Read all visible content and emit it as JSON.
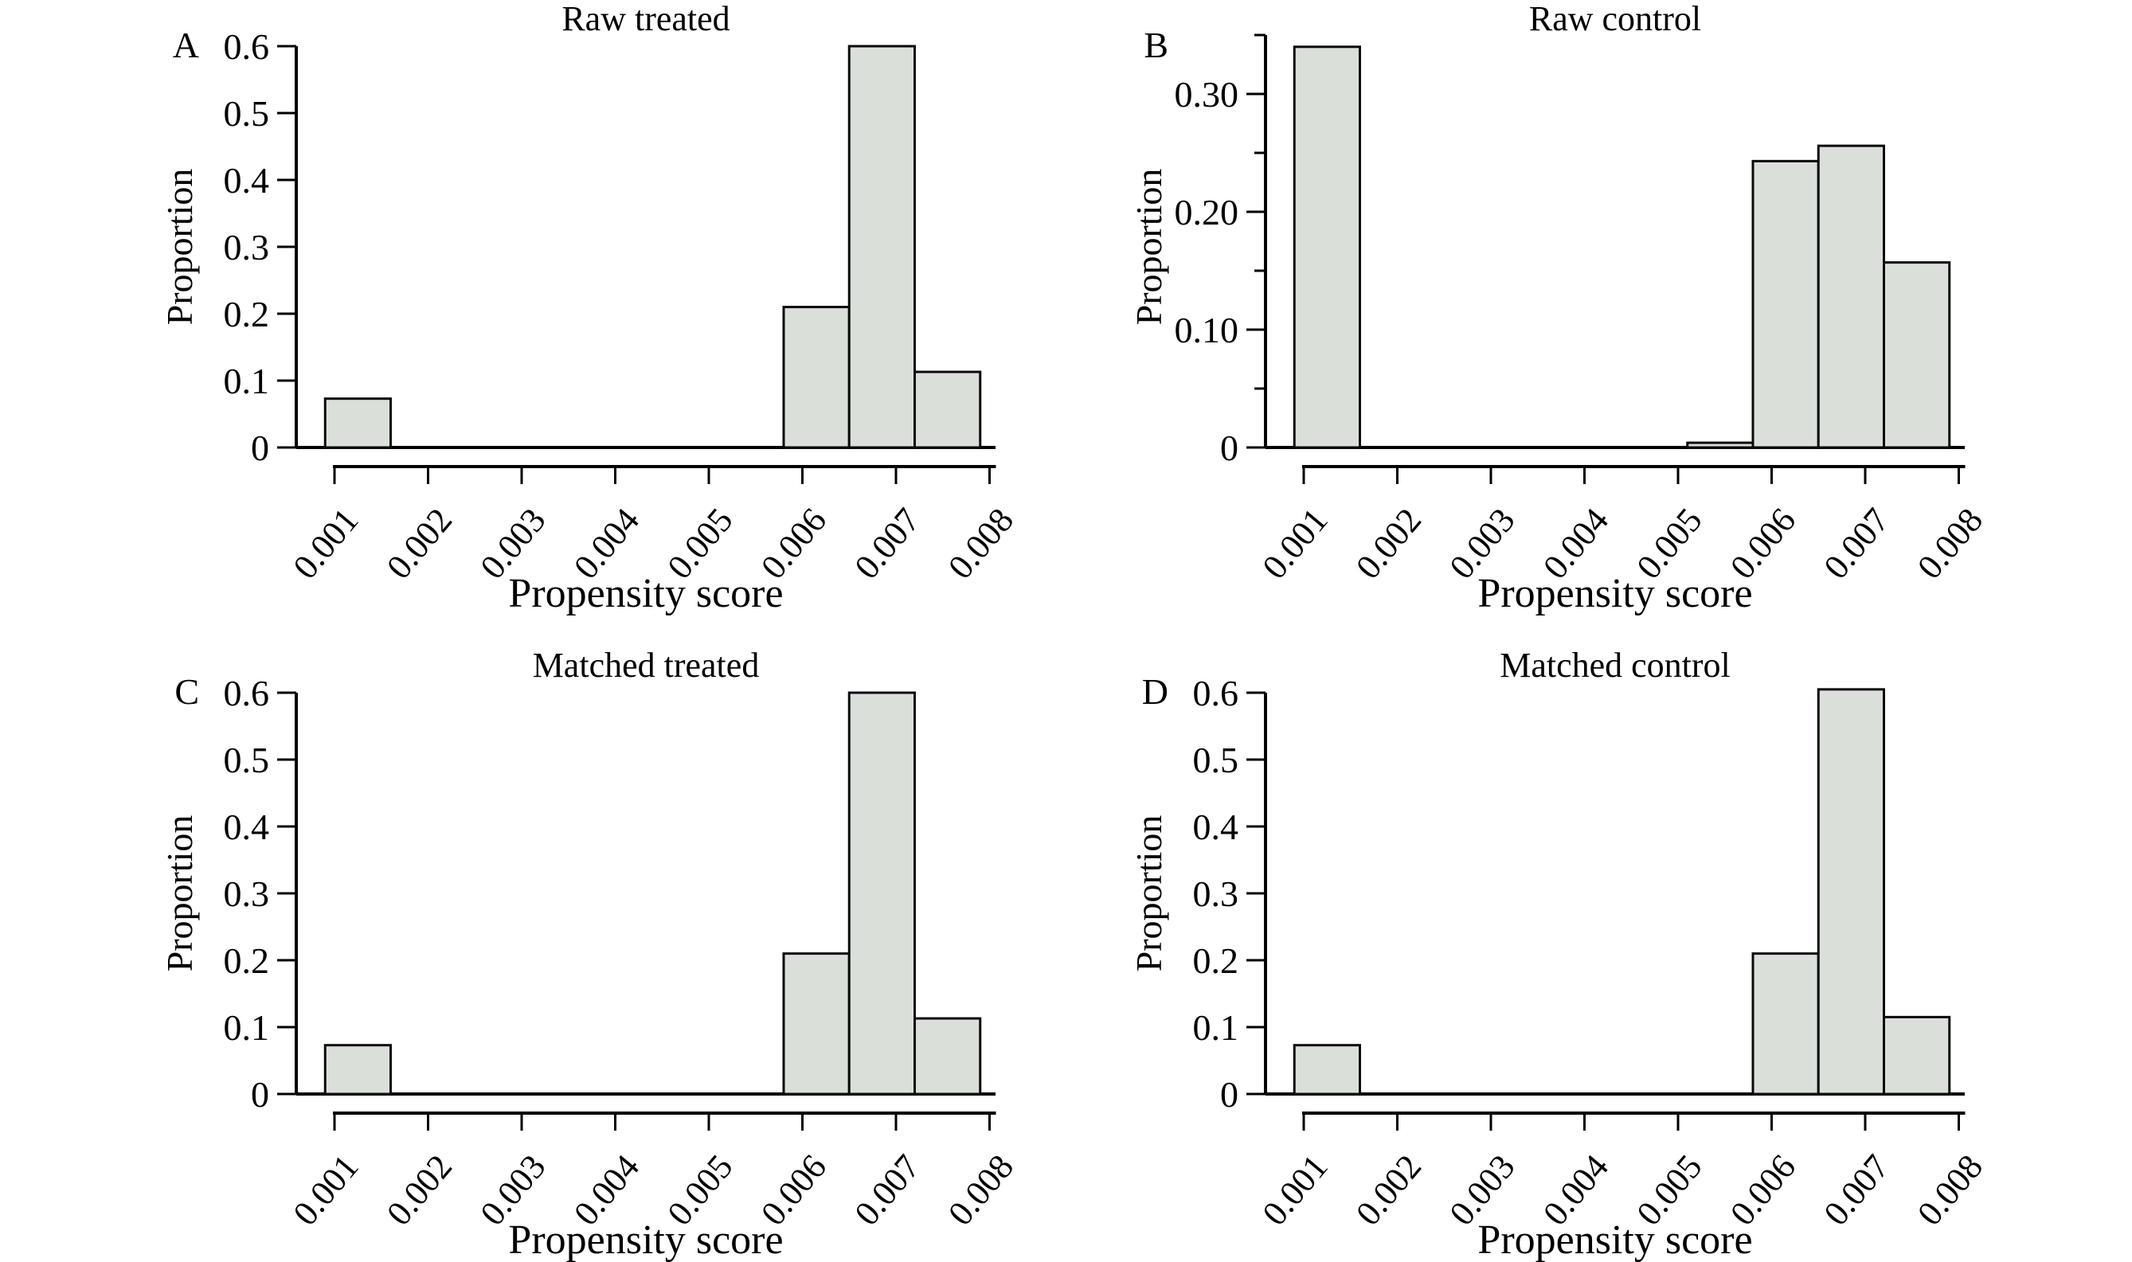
{
  "figure": {
    "background": "#ffffff",
    "text_color": "#000000"
  },
  "colors": {
    "bar_fill": "#dae0d9",
    "bar_stroke": "#0a0a0a",
    "axis": "#000000"
  },
  "chart_data": [
    {
      "type": "bar",
      "panel_label": "A",
      "title": "Raw treated",
      "xlabel": "Propensity score",
      "ylabel": "Proportion",
      "xlim": [
        0.00055,
        0.00805
      ],
      "ylim": [
        0,
        0.6
      ],
      "grid": false,
      "legend": "none",
      "x_ticks": [
        0.001,
        0.002,
        0.003,
        0.004,
        0.005,
        0.006,
        0.007,
        0.008
      ],
      "x_tick_labels": [
        "0.001",
        "0.002",
        "0.003",
        "0.004",
        "0.005",
        "0.006",
        "0.007",
        "0.008"
      ],
      "y_ticks": [
        0,
        0.1,
        0.2,
        0.3,
        0.4,
        0.5,
        0.6
      ],
      "y_tick_labels": [
        "0",
        "0.1",
        "0.2",
        "0.3",
        "0.4",
        "0.5",
        "0.6"
      ],
      "y_minor_ticks": [],
      "bars": [
        {
          "x0": 0.0009,
          "x1": 0.0016,
          "v": 0.073
        },
        {
          "x0": 0.0058,
          "x1": 0.0065,
          "v": 0.21
        },
        {
          "x0": 0.0065,
          "x1": 0.0072,
          "v": 0.6
        },
        {
          "x0": 0.0072,
          "x1": 0.0079,
          "v": 0.113
        }
      ]
    },
    {
      "type": "bar",
      "panel_label": "B",
      "title": "Raw control",
      "xlabel": "Propensity score",
      "ylabel": "Proportion",
      "xlim": [
        0.00055,
        0.00805
      ],
      "ylim": [
        0,
        0.35
      ],
      "grid": false,
      "legend": "none",
      "x_ticks": [
        0.001,
        0.002,
        0.003,
        0.004,
        0.005,
        0.006,
        0.007,
        0.008
      ],
      "x_tick_labels": [
        "0.001",
        "0.002",
        "0.003",
        "0.004",
        "0.005",
        "0.006",
        "0.007",
        "0.008"
      ],
      "y_ticks": [
        0,
        0.1,
        0.2,
        0.3
      ],
      "y_tick_labels": [
        "0",
        "0.10",
        "0.20",
        "0.30"
      ],
      "y_minor_ticks": [
        0.05,
        0.15,
        0.25,
        0.35
      ],
      "bars": [
        {
          "x0": 0.0009,
          "x1": 0.0016,
          "v": 0.34
        },
        {
          "x0": 0.0051,
          "x1": 0.0058,
          "v": 0.004
        },
        {
          "x0": 0.0058,
          "x1": 0.0065,
          "v": 0.243
        },
        {
          "x0": 0.0065,
          "x1": 0.0072,
          "v": 0.256
        },
        {
          "x0": 0.0072,
          "x1": 0.0079,
          "v": 0.157
        }
      ]
    },
    {
      "type": "bar",
      "panel_label": "C",
      "title": "Matched treated",
      "xlabel": "Propensity score",
      "ylabel": "Proportion",
      "xlim": [
        0.00055,
        0.00805
      ],
      "ylim": [
        0,
        0.6
      ],
      "grid": false,
      "legend": "none",
      "x_ticks": [
        0.001,
        0.002,
        0.003,
        0.004,
        0.005,
        0.006,
        0.007,
        0.008
      ],
      "x_tick_labels": [
        "0.001",
        "0.002",
        "0.003",
        "0.004",
        "0.005",
        "0.006",
        "0.007",
        "0.008"
      ],
      "y_ticks": [
        0,
        0.1,
        0.2,
        0.3,
        0.4,
        0.5,
        0.6
      ],
      "y_tick_labels": [
        "0",
        "0.1",
        "0.2",
        "0.3",
        "0.4",
        "0.5",
        "0.6"
      ],
      "y_minor_ticks": [],
      "bars": [
        {
          "x0": 0.0009,
          "x1": 0.0016,
          "v": 0.073
        },
        {
          "x0": 0.0058,
          "x1": 0.0065,
          "v": 0.21
        },
        {
          "x0": 0.0065,
          "x1": 0.0072,
          "v": 0.6
        },
        {
          "x0": 0.0072,
          "x1": 0.0079,
          "v": 0.113
        }
      ]
    },
    {
      "type": "bar",
      "panel_label": "D",
      "title": "Matched control",
      "xlabel": "Propensity score",
      "ylabel": "Proportion",
      "xlim": [
        0.00055,
        0.00805
      ],
      "ylim": [
        0,
        0.6
      ],
      "grid": false,
      "legend": "none",
      "x_ticks": [
        0.001,
        0.002,
        0.003,
        0.004,
        0.005,
        0.006,
        0.007,
        0.008
      ],
      "x_tick_labels": [
        "0.001",
        "0.002",
        "0.003",
        "0.004",
        "0.005",
        "0.006",
        "0.007",
        "0.008"
      ],
      "y_ticks": [
        0,
        0.1,
        0.2,
        0.3,
        0.4,
        0.5,
        0.6
      ],
      "y_tick_labels": [
        "0",
        "0.1",
        "0.2",
        "0.3",
        "0.4",
        "0.5",
        "0.6"
      ],
      "y_minor_ticks": [],
      "bars": [
        {
          "x0": 0.0009,
          "x1": 0.0016,
          "v": 0.073
        },
        {
          "x0": 0.0058,
          "x1": 0.0065,
          "v": 0.21
        },
        {
          "x0": 0.0065,
          "x1": 0.0072,
          "v": 0.605
        },
        {
          "x0": 0.0072,
          "x1": 0.0079,
          "v": 0.115
        }
      ]
    }
  ]
}
